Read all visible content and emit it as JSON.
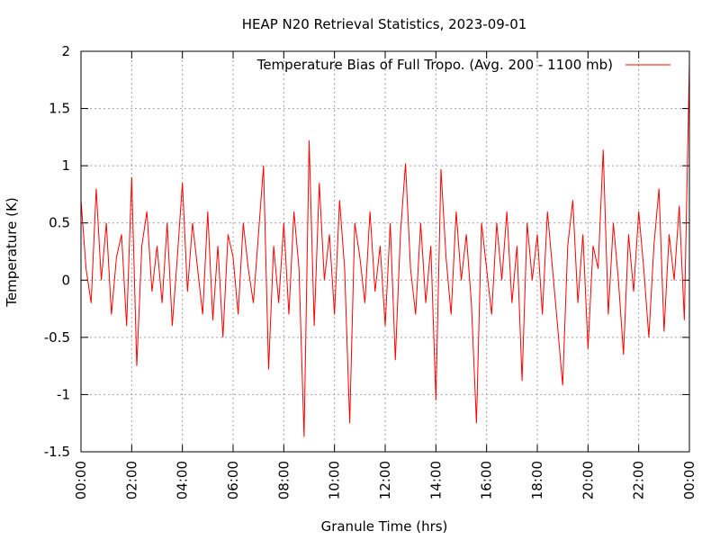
{
  "chart_data": {
    "type": "line",
    "title": "HEAP N20 Retrieval Statistics, 2023-09-01",
    "xlabel": "Granule Time (hrs)",
    "ylabel": "Temperature (K)",
    "x": [
      0,
      0.2,
      0.4,
      0.6,
      0.8,
      1,
      1.2,
      1.4,
      1.6,
      1.8,
      2,
      2.2,
      2.4,
      2.6,
      2.8,
      3,
      3.2,
      3.4,
      3.6,
      3.8,
      4,
      4.2,
      4.4,
      4.6,
      4.8,
      5,
      5.2,
      5.4,
      5.6,
      5.8,
      6,
      6.2,
      6.4,
      6.6,
      6.8,
      7,
      7.2,
      7.4,
      7.6,
      7.8,
      8,
      8.2,
      8.4,
      8.6,
      8.8,
      9,
      9.2,
      9.4,
      9.6,
      9.8,
      10,
      10.2,
      10.4,
      10.6,
      10.8,
      11,
      11.2,
      11.4,
      11.6,
      11.8,
      12,
      12.2,
      12.4,
      12.6,
      12.8,
      13,
      13.2,
      13.4,
      13.6,
      13.8,
      14,
      14.2,
      14.4,
      14.6,
      14.8,
      15,
      15.2,
      15.4,
      15.6,
      15.8,
      16,
      16.2,
      16.4,
      16.6,
      16.8,
      17,
      17.2,
      17.4,
      17.6,
      17.8,
      18,
      18.2,
      18.4,
      18.6,
      18.8,
      19,
      19.2,
      19.4,
      19.6,
      19.8,
      20,
      20.2,
      20.4,
      20.6,
      20.8,
      21,
      21.2,
      21.4,
      21.6,
      21.8,
      22,
      22.2,
      22.4,
      22.6,
      22.8,
      23,
      23.2,
      23.4,
      23.6,
      23.8,
      24
    ],
    "series": [
      {
        "name": "Temperature Bias of Full Tropo. (Avg. 200 - 1100 mb)",
        "color": "#ff0000",
        "values": [
          0.7,
          0.1,
          -0.2,
          0.8,
          0.0,
          0.5,
          -0.3,
          0.2,
          0.4,
          -0.4,
          0.9,
          -0.75,
          0.3,
          0.6,
          -0.1,
          0.3,
          -0.2,
          0.5,
          -0.4,
          0.2,
          0.85,
          -0.1,
          0.5,
          0.1,
          -0.3,
          0.6,
          -0.35,
          0.3,
          -0.5,
          0.4,
          0.2,
          -0.3,
          0.5,
          0.1,
          -0.2,
          0.4,
          1.0,
          -0.78,
          0.3,
          -0.2,
          0.5,
          -0.3,
          0.6,
          0.1,
          -1.37,
          1.22,
          -0.4,
          0.85,
          0.0,
          0.4,
          -0.3,
          0.7,
          0.1,
          -1.25,
          0.5,
          0.2,
          -0.2,
          0.6,
          -0.1,
          0.3,
          -0.4,
          0.5,
          -0.7,
          0.4,
          1.02,
          0.1,
          -0.3,
          0.5,
          -0.2,
          0.3,
          -1.05,
          0.97,
          0.2,
          -0.3,
          0.6,
          0.0,
          0.4,
          -0.2,
          -1.25,
          0.5,
          0.1,
          -0.3,
          0.5,
          0.0,
          0.6,
          -0.2,
          0.3,
          -0.88,
          0.5,
          0.0,
          0.4,
          -0.3,
          0.6,
          0.1,
          -0.4,
          -0.92,
          0.3,
          0.7,
          -0.2,
          0.4,
          -0.6,
          0.3,
          0.1,
          1.14,
          -0.3,
          0.5,
          0.0,
          -0.65,
          0.4,
          -0.1,
          0.6,
          0.1,
          -0.5,
          0.3,
          0.8,
          -0.45,
          0.4,
          0.0,
          0.65,
          -0.35,
          1.9
        ]
      }
    ],
    "xlim": [
      0,
      24
    ],
    "xticks": [
      {
        "value": 0,
        "label": "00:00"
      },
      {
        "value": 2,
        "label": "02:00"
      },
      {
        "value": 4,
        "label": "04:00"
      },
      {
        "value": 6,
        "label": "06:00"
      },
      {
        "value": 8,
        "label": "08:00"
      },
      {
        "value": 10,
        "label": "10:00"
      },
      {
        "value": 12,
        "label": "12:00"
      },
      {
        "value": 14,
        "label": "14:00"
      },
      {
        "value": 16,
        "label": "16:00"
      },
      {
        "value": 18,
        "label": "18:00"
      },
      {
        "value": 20,
        "label": "20:00"
      },
      {
        "value": 22,
        "label": "22:00"
      },
      {
        "value": 24,
        "label": "00:00"
      }
    ],
    "ylim": [
      -1.5,
      2
    ],
    "yticks": [
      -1.5,
      -1,
      -0.5,
      0,
      0.5,
      1,
      1.5,
      2
    ],
    "grid": true,
    "legend": "top-right"
  }
}
